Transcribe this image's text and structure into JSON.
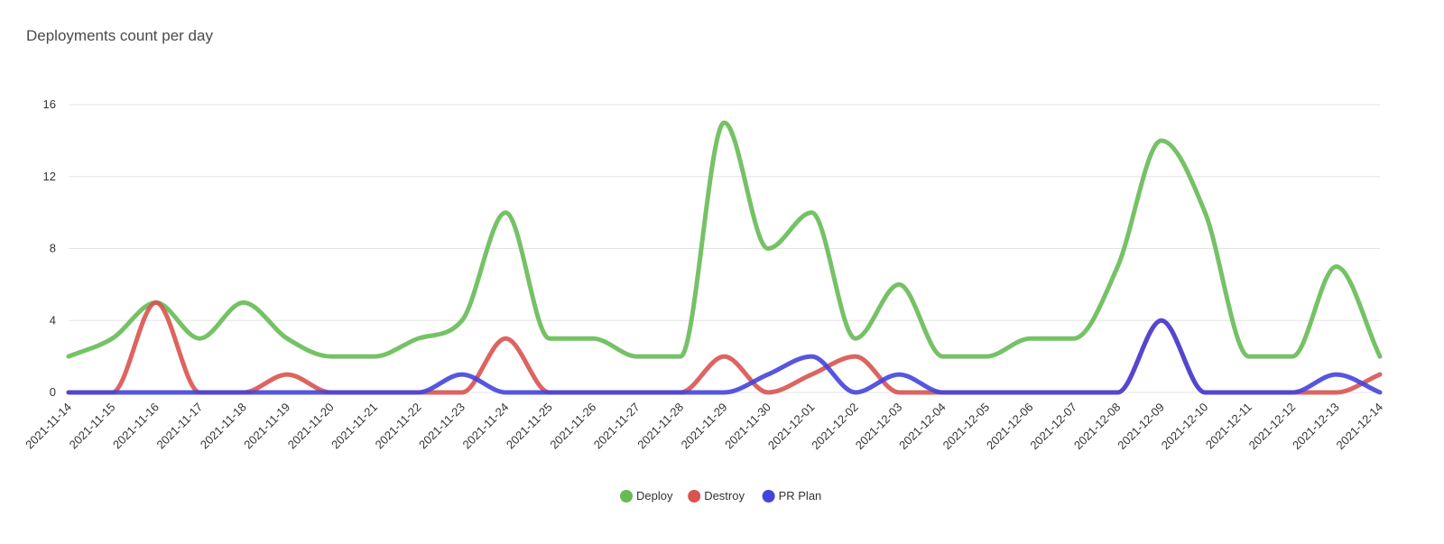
{
  "chart_data": {
    "type": "line",
    "title": "Deployments count per day",
    "xlabel": "",
    "ylabel": "",
    "ylim": [
      0,
      16
    ],
    "yticks": [
      0,
      4,
      8,
      12,
      16
    ],
    "grid": true,
    "legend_position": "bottom-center",
    "categories": [
      "2021-11-14",
      "2021-11-15",
      "2021-11-16",
      "2021-11-17",
      "2021-11-18",
      "2021-11-19",
      "2021-11-20",
      "2021-11-21",
      "2021-11-22",
      "2021-11-23",
      "2021-11-24",
      "2021-11-25",
      "2021-11-26",
      "2021-11-27",
      "2021-11-28",
      "2021-11-29",
      "2021-11-30",
      "2021-12-01",
      "2021-12-02",
      "2021-12-03",
      "2021-12-04",
      "2021-12-05",
      "2021-12-06",
      "2021-12-07",
      "2021-12-08",
      "2021-12-09",
      "2021-12-10",
      "2021-12-11",
      "2021-12-12",
      "2021-12-13",
      "2021-12-14"
    ],
    "series": [
      {
        "name": "Deploy",
        "color": "#66bb55",
        "values": [
          2,
          3,
          5,
          3,
          5,
          3,
          2,
          2,
          3,
          4,
          10,
          3,
          3,
          2,
          2,
          15,
          8,
          10,
          3,
          6,
          2,
          2,
          3,
          3,
          7,
          14,
          10,
          2,
          2,
          7,
          2
        ]
      },
      {
        "name": "Destroy",
        "color": "#d9534f",
        "values": [
          0,
          0,
          5,
          0,
          0,
          1,
          0,
          0,
          0,
          0,
          3,
          0,
          0,
          0,
          0,
          2,
          0,
          1,
          2,
          0,
          0,
          0,
          0,
          0,
          0,
          4,
          0,
          0,
          0,
          0,
          1
        ]
      },
      {
        "name": "PR Plan",
        "color": "#4444dd",
        "values": [
          0,
          0,
          0,
          0,
          0,
          0,
          0,
          0,
          0,
          1,
          0,
          0,
          0,
          0,
          0,
          0,
          1,
          2,
          0,
          1,
          0,
          0,
          0,
          0,
          0,
          4,
          0,
          0,
          0,
          1,
          0
        ]
      }
    ]
  }
}
